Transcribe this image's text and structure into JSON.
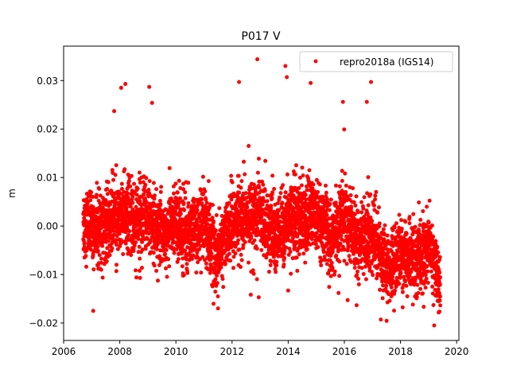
{
  "chart_data": {
    "type": "scatter",
    "title": "P017 V",
    "xlabel": "",
    "ylabel": "m",
    "xlim": [
      2006,
      2020.08
    ],
    "ylim": [
      -0.0236,
      0.0371
    ],
    "xticks": [
      2006,
      2008,
      2010,
      2012,
      2014,
      2016,
      2018,
      2020
    ],
    "xtick_labels": [
      "2006",
      "2008",
      "2010",
      "2012",
      "2014",
      "2016",
      "2018",
      "2020"
    ],
    "yticks": [
      -0.02,
      -0.01,
      0.0,
      0.01,
      0.02,
      0.03
    ],
    "ytick_labels": [
      "−0.02",
      "−0.01",
      "0.00",
      "0.01",
      "0.02",
      "0.03"
    ],
    "grid": false,
    "legend": {
      "placement": "top-right",
      "entries": [
        "repro2018a (IGS14)"
      ]
    },
    "series": [
      {
        "name": "repro2018a (IGS14)",
        "color": "#ff0000",
        "sampling": "daily",
        "x_range": [
          2006.7,
          2019.42
        ],
        "noise_std": 0.0036,
        "trend_curve": [
          [
            2006.7,
            0.001
          ],
          [
            2007.0,
            -0.001
          ],
          [
            2007.5,
            0.0
          ],
          [
            2008.0,
            0.002
          ],
          [
            2008.5,
            0.001
          ],
          [
            2009.0,
            0.002
          ],
          [
            2009.5,
            -0.001
          ],
          [
            2010.0,
            0.0
          ],
          [
            2010.5,
            -0.002
          ],
          [
            2011.0,
            0.0
          ],
          [
            2011.5,
            -0.006
          ],
          [
            2012.0,
            0.001
          ],
          [
            2012.5,
            0.002
          ],
          [
            2013.0,
            0.002
          ],
          [
            2013.5,
            -0.002
          ],
          [
            2014.0,
            0.002
          ],
          [
            2014.5,
            0.002
          ],
          [
            2015.0,
            0.003
          ],
          [
            2015.5,
            -0.003
          ],
          [
            2016.0,
            0.002
          ],
          [
            2016.5,
            -0.004
          ],
          [
            2017.0,
            -0.001
          ],
          [
            2017.5,
            -0.009
          ],
          [
            2018.0,
            -0.006
          ],
          [
            2018.5,
            -0.008
          ],
          [
            2019.0,
            -0.003
          ],
          [
            2019.42,
            -0.013
          ]
        ],
        "outliers": [
          [
            2007.8,
            0.0237
          ],
          [
            2008.05,
            0.0285
          ],
          [
            2008.2,
            0.0293
          ],
          [
            2009.05,
            0.0287
          ],
          [
            2009.15,
            0.0254
          ],
          [
            2012.25,
            0.0297
          ],
          [
            2012.9,
            0.0344
          ],
          [
            2013.9,
            0.033
          ],
          [
            2013.95,
            0.0307
          ],
          [
            2014.8,
            0.0295
          ],
          [
            2015.95,
            0.0256
          ],
          [
            2016.8,
            0.0256
          ],
          [
            2016.95,
            0.0297
          ],
          [
            2011.5,
            -0.017
          ],
          [
            2012.95,
            -0.0147
          ],
          [
            2017.3,
            -0.0193
          ],
          [
            2019.2,
            -0.0205
          ]
        ]
      }
    ]
  }
}
